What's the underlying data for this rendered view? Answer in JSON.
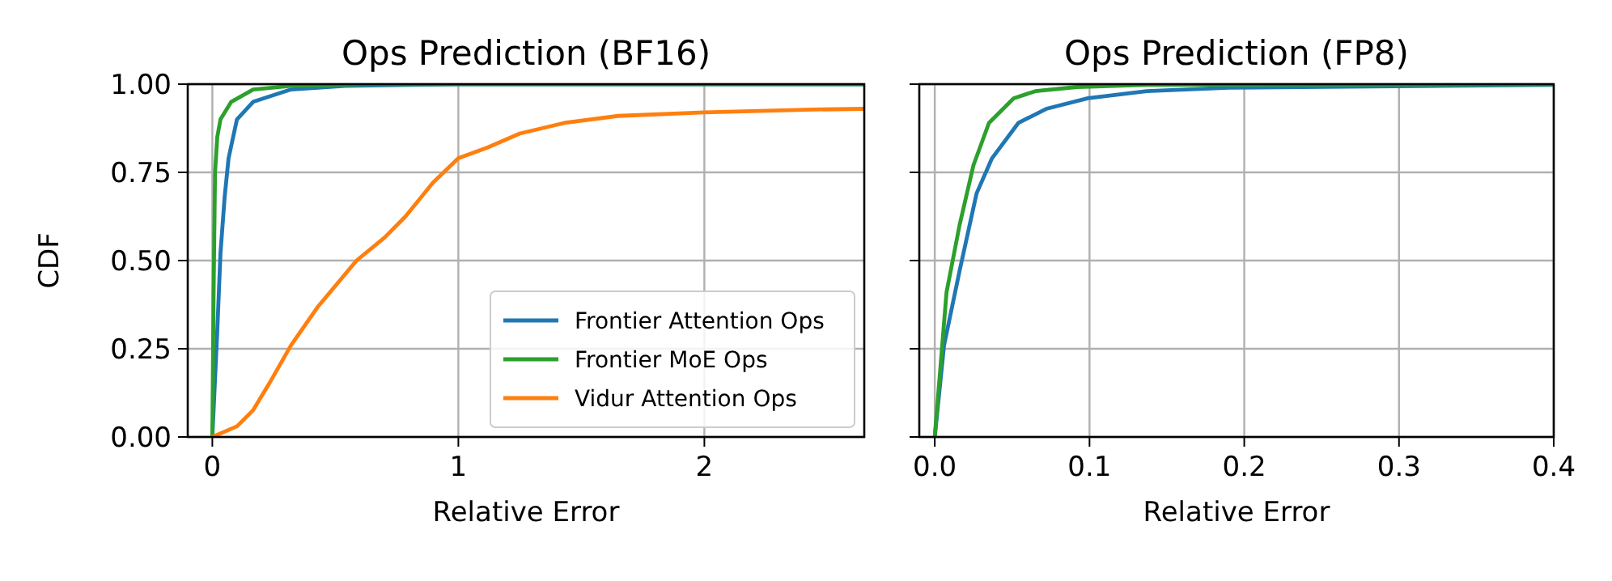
{
  "chart_data": [
    {
      "type": "line",
      "title": "Ops Prediction (BF16)",
      "xlabel": "Relative Error",
      "ylabel": "CDF",
      "xlim": [
        -0.1,
        2.65
      ],
      "xticks": [
        0,
        1,
        2
      ],
      "ylim": [
        0,
        1
      ],
      "yticks": [
        {
          "value": 0,
          "label": "0.00"
        },
        {
          "value": 0.25,
          "label": "0.25"
        },
        {
          "value": 0.5,
          "label": "0.50"
        },
        {
          "value": 0.75,
          "label": "0.75"
        },
        {
          "value": 1,
          "label": "1.00"
        }
      ],
      "grid": true,
      "legend": "bottom right",
      "series": [
        {
          "name": "Frontier Attention Ops",
          "color": "#1f77b4",
          "x": [
            0,
            0.01,
            0.02,
            0.033,
            0.05,
            0.066,
            0.1,
            0.166,
            0.32,
            0.54,
            1,
            2.65
          ],
          "values": [
            0,
            0.15,
            0.3,
            0.52,
            0.68,
            0.79,
            0.9,
            0.95,
            0.985,
            0.995,
            1,
            1
          ]
        },
        {
          "name": "Frontier MoE Ops",
          "color": "#2ca02c",
          "x": [
            0,
            0.005,
            0.011,
            0.02,
            0.033,
            0.077,
            0.166,
            0.32,
            0.6,
            2.65
          ],
          "values": [
            0,
            0.4,
            0.75,
            0.85,
            0.9,
            0.95,
            0.985,
            0.995,
            1,
            1
          ]
        },
        {
          "name": "Vidur Attention Ops",
          "color": "#ff7f0e",
          "x": [
            0,
            0.1,
            0.166,
            0.23,
            0.32,
            0.43,
            0.586,
            0.7,
            0.785,
            0.896,
            1,
            1.117,
            1.25,
            1.43,
            1.65,
            2,
            2.44,
            2.65
          ],
          "values": [
            0,
            0.03,
            0.076,
            0.15,
            0.26,
            0.37,
            0.5,
            0.565,
            0.625,
            0.72,
            0.79,
            0.82,
            0.86,
            0.89,
            0.91,
            0.92,
            0.928,
            0.93
          ]
        }
      ]
    },
    {
      "type": "line",
      "title": "Ops Prediction (FP8)",
      "xlabel": "Relative Error",
      "xlim": [
        -0.01,
        0.4
      ],
      "xticks": [
        {
          "value": 0,
          "label": "0.0"
        },
        0.1,
        0.2,
        0.3,
        0.4
      ],
      "ylim": [
        0,
        1
      ],
      "yticks": [
        0,
        0.25,
        0.5,
        0.75,
        1
      ],
      "tick_labels": "x",
      "grid": true,
      "series": [
        {
          "color": "#1f77b4",
          "x": [
            0,
            0.006,
            0.016,
            0.027,
            0.037,
            0.054,
            0.072,
            0.099,
            0.137,
            0.19,
            0.4
          ],
          "values": [
            0,
            0.26,
            0.47,
            0.69,
            0.79,
            0.89,
            0.93,
            0.96,
            0.98,
            0.99,
            0.998
          ]
        },
        {
          "color": "#2ca02c",
          "x": [
            0,
            0.0076,
            0.016,
            0.025,
            0.035,
            0.051,
            0.065,
            0.092,
            0.137,
            0.4
          ],
          "values": [
            0,
            0.41,
            0.6,
            0.77,
            0.89,
            0.96,
            0.98,
            0.992,
            0.998,
            1
          ]
        }
      ]
    }
  ]
}
